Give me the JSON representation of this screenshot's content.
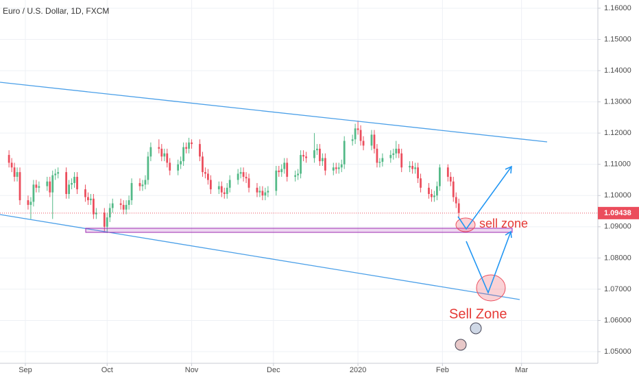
{
  "chart_data": {
    "type": "candlestick",
    "title": "Euro / U.S. Dollar, 1D, FXCM",
    "up_color": "#53b987",
    "down_color": "#eb4d5c",
    "grid": true,
    "xlim": [
      -9.3,
      210
    ],
    "ylim": [
      1.04627,
      1.16263
    ],
    "xticks": [
      {
        "value": 0,
        "label": "Sep"
      },
      {
        "value": 30,
        "label": "Oct"
      },
      {
        "value": 61,
        "label": "Nov"
      },
      {
        "value": 91,
        "label": "Dec"
      },
      {
        "value": 122,
        "label": "2020"
      },
      {
        "value": 153,
        "label": "Feb"
      },
      {
        "value": 182,
        "label": "Mar"
      }
    ],
    "yticks": [
      {
        "value": 1.05,
        "label": "1.05000"
      },
      {
        "value": 1.06,
        "label": "1.06000"
      },
      {
        "value": 1.07,
        "label": "1.07000"
      },
      {
        "value": 1.08,
        "label": "1.08000"
      },
      {
        "value": 1.09,
        "label": "1.09000"
      },
      {
        "value": 1.1,
        "label": "1.10000"
      },
      {
        "value": 1.11,
        "label": "1.11000"
      },
      {
        "value": 1.12,
        "label": "1.12000"
      },
      {
        "value": 1.13,
        "label": "1.13000"
      },
      {
        "value": 1.14,
        "label": "1.14000"
      },
      {
        "value": 1.15,
        "label": "1.15000"
      },
      {
        "value": 1.16,
        "label": "1.16000"
      }
    ],
    "last_price": 1.09438,
    "annotations": [
      "sell zone",
      "Sell Zone"
    ],
    "candles": [
      [
        -6,
        1.113,
        1.1145,
        1.109,
        1.1105
      ],
      [
        -5,
        1.1105,
        1.112,
        1.1075,
        1.109
      ],
      [
        -4,
        1.109,
        1.1105,
        1.1045,
        1.106
      ],
      [
        -3,
        1.106,
        1.109,
        1.1045,
        1.1075
      ],
      [
        -2,
        1.1075,
        1.109,
        1.097,
        1.0985
      ],
      [
        1,
        1.0985,
        1.1,
        1.0955,
        1.097
      ],
      [
        2,
        1.097,
        1.0995,
        1.0925,
        1.098
      ],
      [
        3,
        1.098,
        1.105,
        1.0965,
        1.1035
      ],
      [
        4,
        1.1035,
        1.105,
        1.101,
        1.1025
      ],
      [
        5,
        1.1025,
        1.1045,
        1.101,
        1.103
      ],
      [
        8,
        1.103,
        1.106,
        1.1015,
        1.1045
      ],
      [
        9,
        1.1045,
        1.106,
        1.0995,
        1.101
      ],
      [
        10,
        1.101,
        1.108,
        1.0925,
        1.1065
      ],
      [
        11,
        1.1065,
        1.1085,
        1.105,
        1.107
      ],
      [
        12,
        1.107,
        1.109,
        1.1055,
        1.1075
      ],
      [
        15,
        1.1075,
        1.109,
        1.099,
        1.1005
      ],
      [
        16,
        1.1005,
        1.105,
        1.099,
        1.1035
      ],
      [
        17,
        1.1035,
        1.1055,
        1.102,
        1.104
      ],
      [
        18,
        1.104,
        1.1075,
        1.1025,
        1.106
      ],
      [
        19,
        1.106,
        1.1075,
        1.1005,
        1.102
      ],
      [
        22,
        1.102,
        1.1035,
        1.098,
        1.0995
      ],
      [
        23,
        1.0995,
        1.101,
        1.097,
        1.0985
      ],
      [
        24,
        1.0985,
        1.1005,
        1.097,
        1.099
      ],
      [
        25,
        1.099,
        1.1005,
        1.0925,
        1.094
      ],
      [
        26,
        1.094,
        1.096,
        1.0925,
        1.0945
      ],
      [
        29,
        1.0945,
        1.096,
        1.0885,
        1.09
      ],
      [
        30,
        1.09,
        1.0945,
        1.088,
        1.093
      ],
      [
        31,
        1.093,
        1.0975,
        1.0915,
        1.096
      ],
      [
        32,
        1.096,
        1.099,
        1.0945,
        1.0975
      ],
      [
        35,
        1.0975,
        1.099,
        1.0955,
        1.097
      ],
      [
        36,
        1.097,
        1.0985,
        1.094,
        1.0955
      ],
      [
        37,
        1.0955,
        1.0985,
        1.094,
        1.097
      ],
      [
        38,
        1.097,
        1.1,
        1.0955,
        1.0985
      ],
      [
        39,
        1.0985,
        1.1055,
        1.097,
        1.104
      ],
      [
        42,
        1.104,
        1.1055,
        1.1015,
        1.103
      ],
      [
        43,
        1.103,
        1.105,
        1.1015,
        1.1035
      ],
      [
        44,
        1.1035,
        1.1065,
        1.102,
        1.105
      ],
      [
        45,
        1.105,
        1.114,
        1.1035,
        1.1125
      ],
      [
        46,
        1.1125,
        1.117,
        1.111,
        1.1155
      ],
      [
        49,
        1.1155,
        1.118,
        1.1135,
        1.115
      ],
      [
        50,
        1.115,
        1.1165,
        1.111,
        1.1125
      ],
      [
        51,
        1.1125,
        1.115,
        1.111,
        1.1135
      ],
      [
        52,
        1.1135,
        1.115,
        1.109,
        1.1105
      ],
      [
        53,
        1.1105,
        1.112,
        1.1065,
        1.108
      ],
      [
        56,
        1.108,
        1.1115,
        1.1065,
        1.11
      ],
      [
        57,
        1.11,
        1.1125,
        1.1085,
        1.111
      ],
      [
        58,
        1.111,
        1.117,
        1.1095,
        1.1155
      ],
      [
        59,
        1.1155,
        1.117,
        1.1135,
        1.115
      ],
      [
        60,
        1.115,
        1.1185,
        1.1135,
        1.117
      ],
      [
        61,
        1.117,
        1.118,
        1.115,
        1.1165
      ],
      [
        64,
        1.1165,
        1.118,
        1.111,
        1.1125
      ],
      [
        65,
        1.1125,
        1.114,
        1.106,
        1.1075
      ],
      [
        66,
        1.1075,
        1.109,
        1.1055,
        1.107
      ],
      [
        67,
        1.107,
        1.1085,
        1.1035,
        1.105
      ],
      [
        68,
        1.105,
        1.1065,
        1.1005,
        1.102
      ],
      [
        71,
        1.102,
        1.1045,
        1.1005,
        1.103
      ],
      [
        72,
        1.103,
        1.1045,
        1.0995,
        1.101
      ],
      [
        73,
        1.101,
        1.1025,
        1.099,
        1.1005
      ],
      [
        74,
        1.1005,
        1.104,
        1.099,
        1.1025
      ],
      [
        75,
        1.1025,
        1.1065,
        1.101,
        1.105
      ],
      [
        78,
        1.105,
        1.1085,
        1.1035,
        1.107
      ],
      [
        79,
        1.107,
        1.109,
        1.1055,
        1.1075
      ],
      [
        80,
        1.1075,
        1.109,
        1.1045,
        1.106
      ],
      [
        81,
        1.106,
        1.1075,
        1.104,
        1.1055
      ],
      [
        82,
        1.1055,
        1.107,
        1.101,
        1.1025
      ],
      [
        85,
        1.1025,
        1.104,
        1.0995,
        1.101
      ],
      [
        86,
        1.101,
        1.103,
        1.0995,
        1.1015
      ],
      [
        87,
        1.1015,
        1.103,
        1.0985,
        1.1
      ],
      [
        88,
        1.1,
        1.1025,
        1.0985,
        1.101
      ],
      [
        89,
        1.101,
        1.103,
        1.0995,
        1.1015
      ],
      [
        92,
        1.1015,
        1.1095,
        1.1,
        1.108
      ],
      [
        93,
        1.108,
        1.1095,
        1.106,
        1.1075
      ],
      [
        94,
        1.1075,
        1.11,
        1.106,
        1.1085
      ],
      [
        95,
        1.1085,
        1.112,
        1.107,
        1.1105
      ],
      [
        96,
        1.1105,
        1.112,
        1.1045,
        1.106
      ],
      [
        99,
        1.106,
        1.108,
        1.1045,
        1.1065
      ],
      [
        100,
        1.1065,
        1.1085,
        1.105,
        1.107
      ],
      [
        101,
        1.107,
        1.1145,
        1.1055,
        1.113
      ],
      [
        102,
        1.113,
        1.1145,
        1.111,
        1.1125
      ],
      [
        103,
        1.1125,
        1.114,
        1.1105,
        1.112
      ],
      [
        106,
        1.112,
        1.12,
        1.1105,
        1.1145
      ],
      [
        107,
        1.1145,
        1.1165,
        1.113,
        1.115
      ],
      [
        108,
        1.115,
        1.1165,
        1.1095,
        1.111
      ],
      [
        109,
        1.111,
        1.1135,
        1.1095,
        1.112
      ],
      [
        110,
        1.112,
        1.1135,
        1.1065,
        1.108
      ],
      [
        113,
        1.108,
        1.1105,
        1.1065,
        1.109
      ],
      [
        114,
        1.109,
        1.1105,
        1.107,
        1.1085
      ],
      [
        115,
        1.1085,
        1.1105,
        1.107,
        1.109
      ],
      [
        116,
        1.109,
        1.1115,
        1.1075,
        1.11
      ],
      [
        117,
        1.11,
        1.119,
        1.1085,
        1.1175
      ],
      [
        120,
        1.1175,
        1.1195,
        1.116,
        1.118
      ],
      [
        121,
        1.118,
        1.123,
        1.1165,
        1.1215
      ],
      [
        122,
        1.1215,
        1.124,
        1.1195,
        1.121
      ],
      [
        123,
        1.121,
        1.1225,
        1.116,
        1.1175
      ],
      [
        124,
        1.1175,
        1.119,
        1.1145,
        1.116
      ],
      [
        127,
        1.116,
        1.121,
        1.1145,
        1.1195
      ],
      [
        128,
        1.1195,
        1.121,
        1.1135,
        1.115
      ],
      [
        129,
        1.115,
        1.1165,
        1.109,
        1.1105
      ],
      [
        130,
        1.1105,
        1.112,
        1.109,
        1.1108
      ],
      [
        131,
        1.1108,
        1.1135,
        1.1093,
        1.112
      ],
      [
        134,
        1.112,
        1.1145,
        1.1105,
        1.113
      ],
      [
        135,
        1.113,
        1.115,
        1.1115,
        1.1135
      ],
      [
        136,
        1.1135,
        1.1175,
        1.112,
        1.115
      ],
      [
        137,
        1.115,
        1.1165,
        1.112,
        1.1135
      ],
      [
        138,
        1.1135,
        1.115,
        1.1075,
        1.109
      ],
      [
        141,
        1.109,
        1.111,
        1.1075,
        1.1095
      ],
      [
        142,
        1.1095,
        1.111,
        1.107,
        1.1085
      ],
      [
        143,
        1.1085,
        1.1105,
        1.107,
        1.109
      ],
      [
        144,
        1.109,
        1.1105,
        1.104,
        1.1055
      ],
      [
        145,
        1.1055,
        1.107,
        1.101,
        1.1025
      ],
      [
        148,
        1.1025,
        1.104,
        1.099,
        1.1005
      ],
      [
        149,
        1.1005,
        1.102,
        1.098,
        1.0995
      ],
      [
        150,
        1.0995,
        1.1015,
        1.098,
        1.1
      ],
      [
        151,
        1.1,
        1.1045,
        1.0985,
        1.103
      ],
      [
        152,
        1.103,
        1.11,
        1.1015,
        1.109
      ],
      [
        155,
        1.109,
        1.11,
        1.1045,
        1.106
      ],
      [
        156,
        1.106,
        1.1075,
        1.103,
        1.1045
      ],
      [
        157,
        1.1045,
        1.106,
        1.098,
        1.0995
      ],
      [
        158,
        1.0995,
        1.101,
        1.096,
        1.0975
      ],
      [
        159,
        1.0975,
        1.099,
        1.093,
        1.0944
      ]
    ]
  }
}
